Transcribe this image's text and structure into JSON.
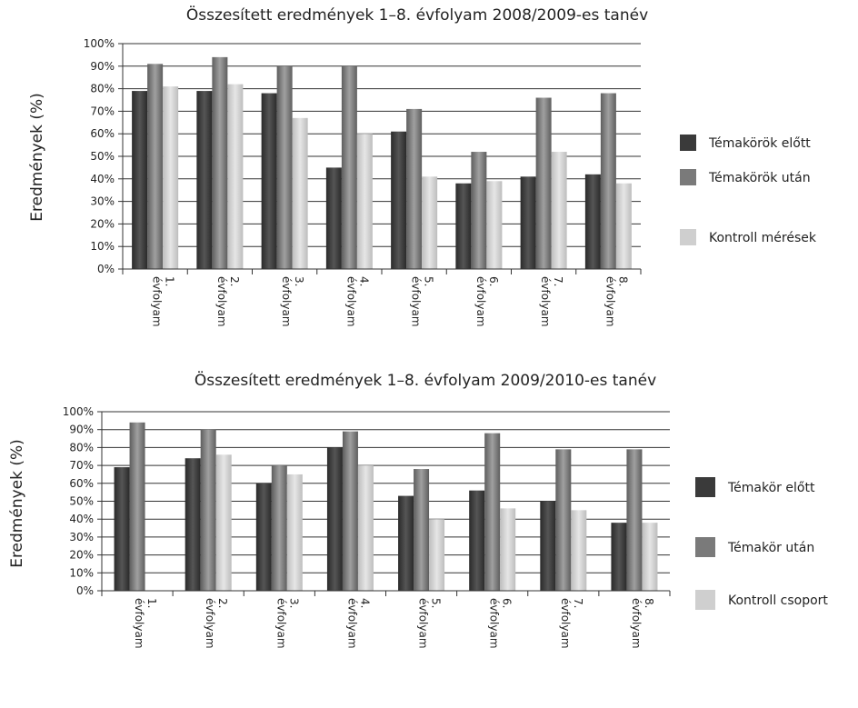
{
  "chart_data": [
    {
      "type": "bar",
      "title": "Összesített eredmények 1–8. évfolyam  2008/2009-es tanév",
      "ylabel": "Eredmények (%)",
      "xlabel": "",
      "ylim": [
        0,
        100
      ],
      "yticks": [
        "0%",
        "10%",
        "20%",
        "30%",
        "40%",
        "50%",
        "60%",
        "70%",
        "80%",
        "90%",
        "100%"
      ],
      "categories": [
        [
          "1.",
          "évfolyam"
        ],
        [
          "2.",
          "évfolyam"
        ],
        [
          "3.",
          "évfolyam"
        ],
        [
          "4.",
          "évfolyam"
        ],
        [
          "5.",
          "évfolyam"
        ],
        [
          "6.",
          "évfolyam"
        ],
        [
          "7.",
          "évfolyam"
        ],
        [
          "8.",
          "évfolyam"
        ]
      ],
      "series": [
        {
          "name": "Témakörök előtt",
          "color": "#3a3a3a",
          "values": [
            79,
            79,
            78,
            45,
            61,
            38,
            41,
            42
          ]
        },
        {
          "name": "Témakörök után",
          "color": "#7a7a7a",
          "values": [
            91,
            94,
            90,
            90,
            71,
            52,
            76,
            78
          ]
        },
        {
          "name": "Kontroll mérések",
          "color": "#cfcfcf",
          "values": [
            81,
            82,
            67,
            60,
            41,
            39,
            52,
            38
          ]
        }
      ],
      "grid": true,
      "legend_position": "right"
    },
    {
      "type": "bar",
      "title": "Összesített eredmények 1–8. évfolyam  2009/2010-es tanév",
      "ylabel": "Eredmények (%)",
      "xlabel": "",
      "ylim": [
        0,
        100
      ],
      "yticks": [
        "0%",
        "10%",
        "20%",
        "30%",
        "40%",
        "50%",
        "60%",
        "70%",
        "80%",
        "90%",
        "100%"
      ],
      "categories": [
        [
          "1.",
          "évfolyam"
        ],
        [
          "2.",
          "évfolyam"
        ],
        [
          "3.",
          "évfolyam"
        ],
        [
          "4.",
          "évfolyam"
        ],
        [
          "5.",
          "évfolyam"
        ],
        [
          "6.",
          "évfolyam"
        ],
        [
          "7.",
          "évfolyam"
        ],
        [
          "8.",
          "évfolyam"
        ]
      ],
      "series": [
        {
          "name": "Témakör előtt",
          "color": "#3a3a3a",
          "values": [
            69,
            74,
            60,
            80,
            53,
            56,
            50,
            38
          ]
        },
        {
          "name": "Témakör után",
          "color": "#7a7a7a",
          "values": [
            94,
            90,
            70,
            89,
            68,
            88,
            79,
            79
          ]
        },
        {
          "name": "Kontroll csoport",
          "color": "#cfcfcf",
          "values": [
            0,
            76,
            65,
            70,
            40,
            46,
            45,
            38
          ]
        }
      ],
      "grid": true,
      "legend_position": "right"
    }
  ]
}
